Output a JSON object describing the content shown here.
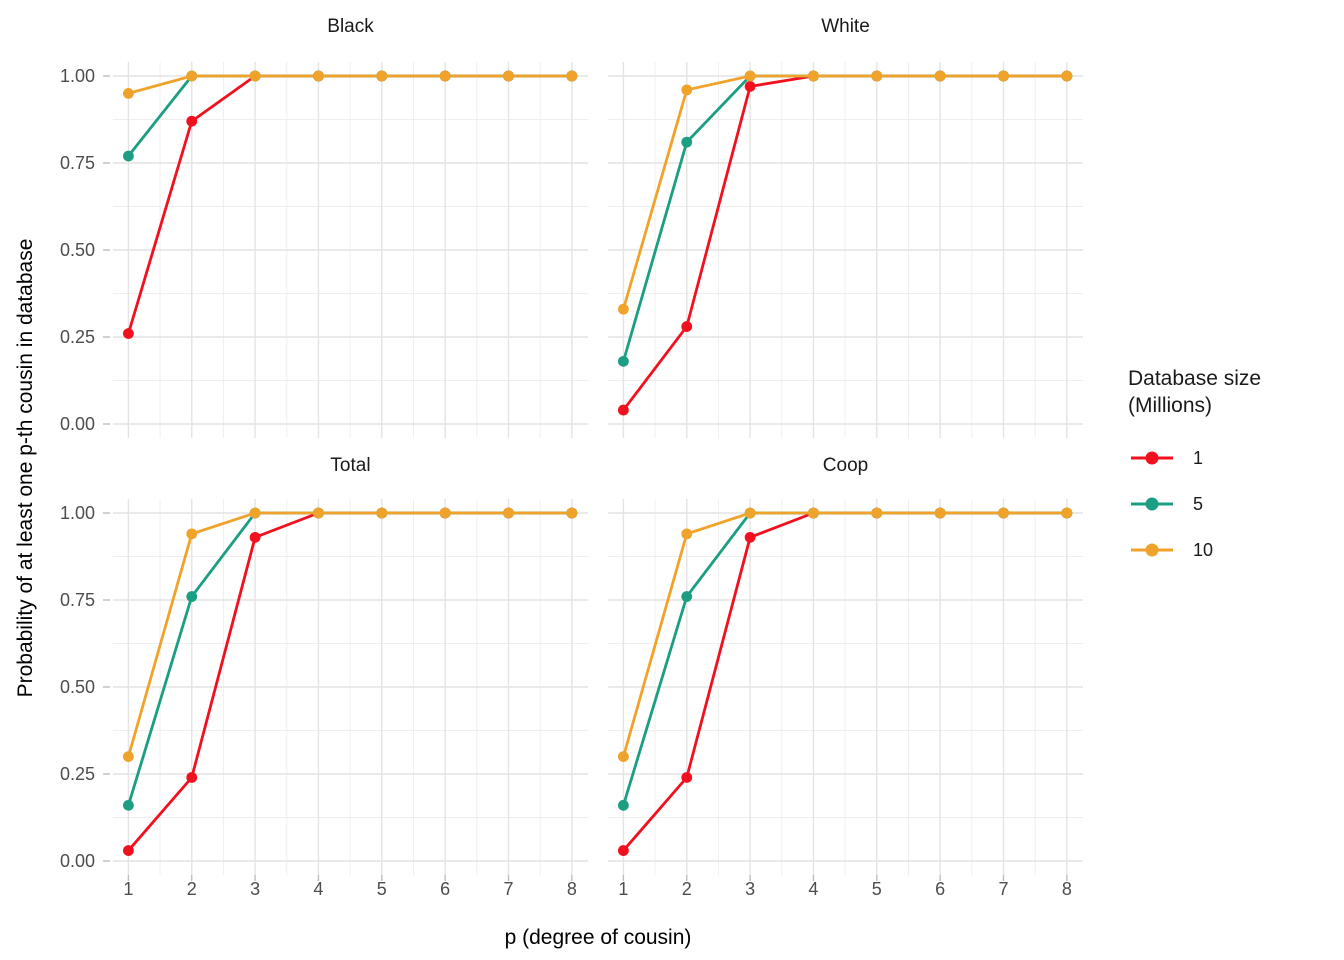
{
  "chart_data": {
    "type": "line",
    "x": [
      1,
      2,
      3,
      4,
      5,
      6,
      7,
      8
    ],
    "x_ticks": [
      "1",
      "2",
      "3",
      "4",
      "5",
      "6",
      "7",
      "8"
    ],
    "y_ticks": [
      "1.00",
      "0.75",
      "0.50",
      "0.25",
      "0.00"
    ],
    "y_tick_values": [
      1.0,
      0.75,
      0.5,
      0.25,
      0.0
    ],
    "ylim": [
      0,
      1
    ],
    "xlabel": "p (degree of cousin)",
    "ylabel": "Probability of at least one p-th cousin in database",
    "grid": "major-and-minor, light gray on white, no panel border",
    "facets": [
      {
        "title": "Black",
        "series": [
          {
            "name": "1",
            "color": "#F2101E",
            "values": [
              0.26,
              0.87,
              1.0,
              1.0,
              1.0,
              1.0,
              1.0,
              1.0
            ]
          },
          {
            "name": "5",
            "color": "#1B9E81",
            "values": [
              0.77,
              1.0,
              1.0,
              1.0,
              1.0,
              1.0,
              1.0,
              1.0
            ]
          },
          {
            "name": "10",
            "color": "#F0A32A",
            "values": [
              0.95,
              1.0,
              1.0,
              1.0,
              1.0,
              1.0,
              1.0,
              1.0
            ]
          }
        ]
      },
      {
        "title": "White",
        "series": [
          {
            "name": "1",
            "color": "#F2101E",
            "values": [
              0.04,
              0.28,
              0.97,
              1.0,
              1.0,
              1.0,
              1.0,
              1.0
            ]
          },
          {
            "name": "5",
            "color": "#1B9E81",
            "values": [
              0.18,
              0.81,
              1.0,
              1.0,
              1.0,
              1.0,
              1.0,
              1.0
            ]
          },
          {
            "name": "10",
            "color": "#F0A32A",
            "values": [
              0.33,
              0.96,
              1.0,
              1.0,
              1.0,
              1.0,
              1.0,
              1.0
            ]
          }
        ]
      },
      {
        "title": "Total",
        "series": [
          {
            "name": "1",
            "color": "#F2101E",
            "values": [
              0.03,
              0.24,
              0.93,
              1.0,
              1.0,
              1.0,
              1.0,
              1.0
            ]
          },
          {
            "name": "5",
            "color": "#1B9E81",
            "values": [
              0.16,
              0.76,
              1.0,
              1.0,
              1.0,
              1.0,
              1.0,
              1.0
            ]
          },
          {
            "name": "10",
            "color": "#F0A32A",
            "values": [
              0.3,
              0.94,
              1.0,
              1.0,
              1.0,
              1.0,
              1.0,
              1.0
            ]
          }
        ]
      },
      {
        "title": "Coop",
        "series": [
          {
            "name": "1",
            "color": "#F2101E",
            "values": [
              0.03,
              0.24,
              0.93,
              1.0,
              1.0,
              1.0,
              1.0,
              1.0
            ]
          },
          {
            "name": "5",
            "color": "#1B9E81",
            "values": [
              0.16,
              0.76,
              1.0,
              1.0,
              1.0,
              1.0,
              1.0,
              1.0
            ]
          },
          {
            "name": "10",
            "color": "#F0A32A",
            "values": [
              0.3,
              0.94,
              1.0,
              1.0,
              1.0,
              1.0,
              1.0,
              1.0
            ]
          }
        ]
      }
    ],
    "legend": {
      "position": "right",
      "title_line1": "Database size",
      "title_line2": "(Millions)",
      "entries": [
        {
          "label": "1",
          "color": "#F2101E"
        },
        {
          "label": "5",
          "color": "#1B9E81"
        },
        {
          "label": "10",
          "color": "#F0A32A"
        }
      ]
    },
    "style_colors": {
      "grid_major": "#E4E4E4",
      "grid_minor": "#EFEFEF",
      "axis_tick_mark": "#BDBDBD",
      "tick_label": "#4D4D4D",
      "title_text": "#1A1A1A",
      "background": "#FFFFFF"
    }
  }
}
